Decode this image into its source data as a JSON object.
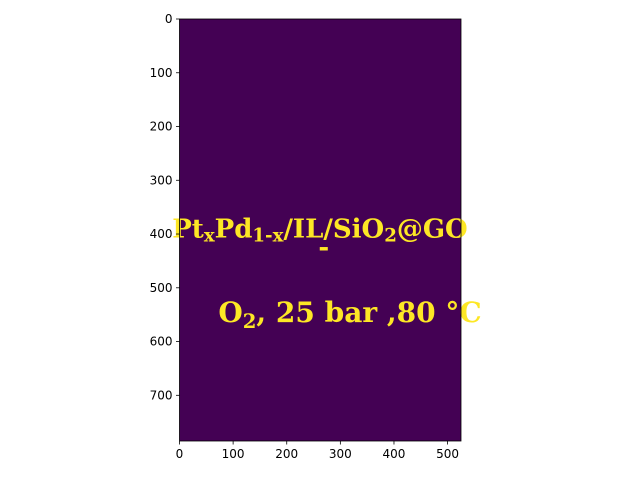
{
  "chart_data": {
    "type": "heatmap",
    "title": "",
    "xlabel": "",
    "ylabel": "",
    "xlim": [
      0,
      525
    ],
    "ylim": [
      785,
      0
    ],
    "x_ticks": [
      0,
      100,
      200,
      300,
      400,
      500
    ],
    "y_ticks": [
      0,
      100,
      200,
      300,
      400,
      500,
      600,
      700
    ],
    "colormap": "viridis",
    "background_color": "#440154",
    "foreground_color": "#fde725",
    "grid": false,
    "legend": "none",
    "image_text": {
      "line1": "PtxPd1-x/IL/SiO2@GO",
      "line1_parts": [
        {
          "t": "Pt",
          "sub": false
        },
        {
          "t": "x",
          "sub": true
        },
        {
          "t": "Pd",
          "sub": false
        },
        {
          "t": "1-x",
          "sub": true
        },
        {
          "t": "/IL/SiO",
          "sub": false
        },
        {
          "t": "2",
          "sub": true
        },
        {
          "t": "@GO",
          "sub": false
        }
      ],
      "dash": "-",
      "line2": "O2, 25 bar ,80 °C",
      "line2_parts": [
        {
          "t": "O",
          "sub": false
        },
        {
          "t": "2",
          "sub": true
        },
        {
          "t": ", 25 bar ,80 °C",
          "sub": false
        }
      ]
    }
  }
}
